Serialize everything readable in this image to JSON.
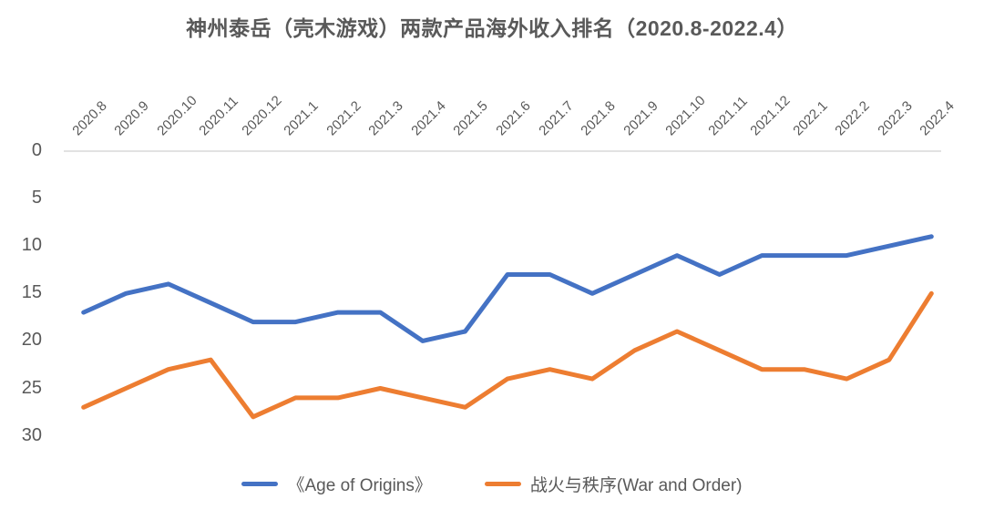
{
  "chart_data": {
    "type": "line",
    "title": "神州泰岳（壳木游戏）两款产品海外收入排名（2020.8-2022.4）",
    "categories": [
      "2020.8",
      "2020.9",
      "2020.10",
      "2020.11",
      "2020.12",
      "2021.1",
      "2021.2",
      "2021.3",
      "2021.4",
      "2021.5",
      "2021.6",
      "2021.7",
      "2021.8",
      "2021.9",
      "2021.10",
      "2021.11",
      "2021.12",
      "2022.1",
      "2022.2",
      "2022.3",
      "2022.4"
    ],
    "series": [
      {
        "name": "《Age of Origins》",
        "color": "#4472C4",
        "values": [
          17,
          15,
          14,
          16,
          18,
          18,
          17,
          17,
          20,
          19,
          13,
          13,
          15,
          13,
          11,
          13,
          11,
          11,
          11,
          10,
          9
        ]
      },
      {
        "name": "战火与秩序(War and Order)",
        "color": "#ED7D31",
        "values": [
          27,
          25,
          23,
          22,
          28,
          26,
          26,
          25,
          26,
          27,
          24,
          23,
          24,
          21,
          19,
          21,
          23,
          23,
          24,
          22,
          15
        ]
      }
    ],
    "y_axis": {
      "ticks": [
        0,
        5,
        10,
        15,
        20,
        25,
        30
      ],
      "min": 0,
      "max": 30,
      "reversed": true,
      "label_color": "#595959"
    },
    "x_axis": {
      "position": "top",
      "label_rotation_deg": 45,
      "label_color": "#595959"
    },
    "grid": false,
    "axis_line_color": "#D9D9D9",
    "background_color": "#FFFFFF",
    "legend_position": "bottom"
  }
}
